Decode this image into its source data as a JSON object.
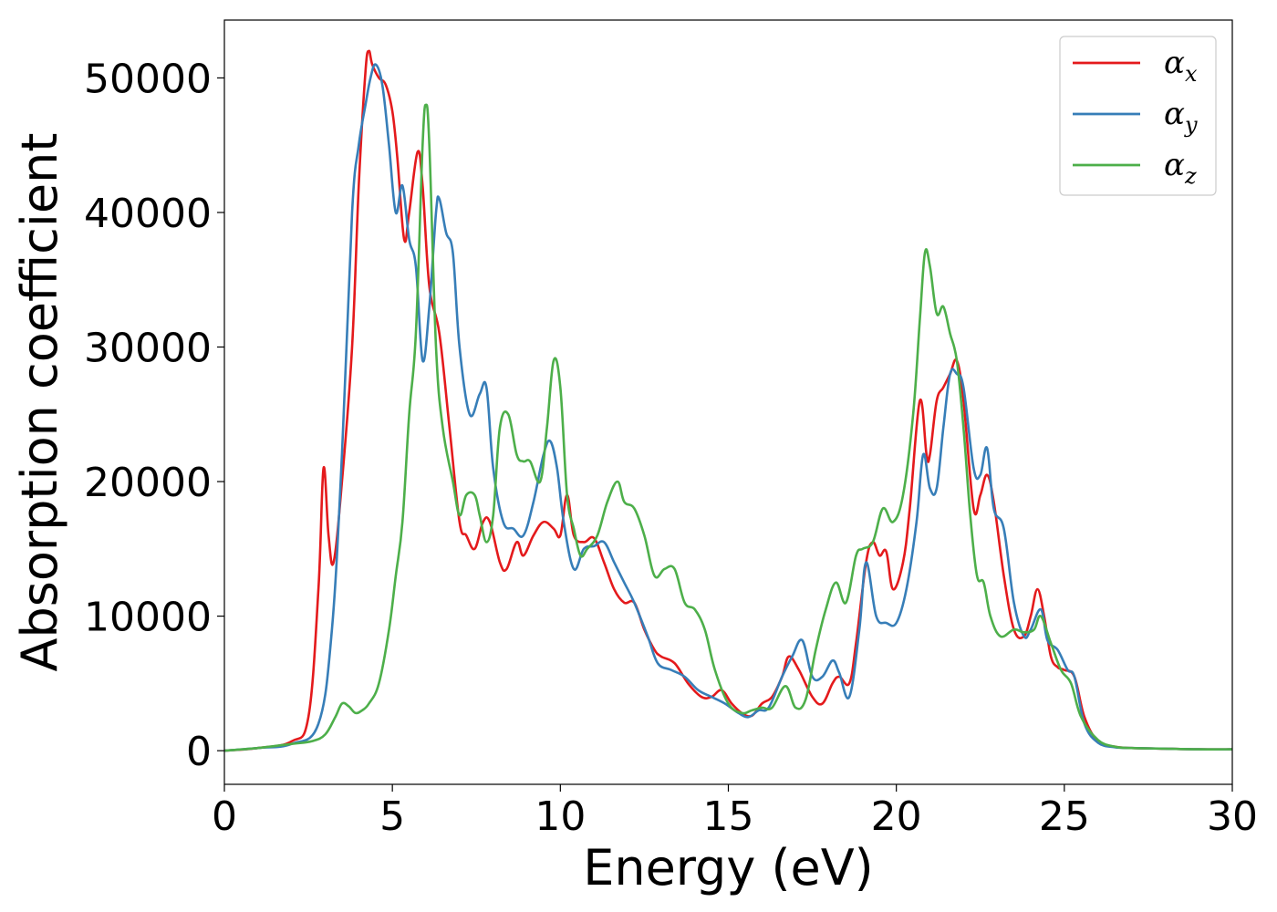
{
  "chart_data": {
    "type": "line",
    "title": "",
    "xlabel": "Energy (eV)",
    "ylabel": "Absorption coefficient",
    "xlim": [
      0,
      30
    ],
    "ylim": [
      -2500,
      54300
    ],
    "xticks": [
      0,
      5,
      10,
      15,
      20,
      25,
      30
    ],
    "yticks": [
      0,
      10000,
      20000,
      30000,
      40000,
      50000
    ],
    "grid": false,
    "legend_position": "top-right",
    "series": [
      {
        "name": "α",
        "subscript": "x",
        "color": "#e41a1c",
        "x": [
          0,
          1,
          2,
          2.5,
          2.8,
          2.95,
          3.1,
          3.25,
          3.5,
          3.8,
          4.0,
          4.2,
          4.3,
          4.4,
          4.6,
          4.8,
          5.0,
          5.15,
          5.35,
          5.5,
          5.75,
          5.9,
          6.1,
          6.4,
          6.7,
          7.0,
          7.2,
          7.45,
          7.7,
          7.9,
          8.2,
          8.4,
          8.7,
          8.9,
          9.2,
          9.5,
          9.8,
          10.0,
          10.2,
          10.4,
          10.7,
          11.0,
          11.3,
          11.6,
          11.9,
          12.2,
          12.5,
          12.8,
          13.0,
          13.4,
          13.8,
          14.2,
          14.5,
          14.8,
          15.1,
          15.4,
          15.7,
          16.0,
          16.3,
          16.6,
          16.8,
          17.1,
          17.5,
          17.8,
          18.1,
          18.3,
          18.6,
          18.8,
          19.1,
          19.3,
          19.5,
          19.7,
          19.9,
          20.2,
          20.4,
          20.7,
          20.9,
          21.0,
          21.2,
          21.4,
          21.6,
          21.8,
          22.0,
          22.3,
          22.5,
          22.7,
          22.9,
          23.2,
          23.5,
          23.8,
          24.0,
          24.2,
          24.4,
          24.6,
          24.8,
          25.0,
          25.3,
          25.6,
          26.0,
          26.5,
          27,
          28,
          29,
          30
        ],
        "y": [
          0,
          200,
          700,
          2500,
          12000,
          21000,
          16000,
          14000,
          20000,
          30000,
          42000,
          50500,
          52000,
          51000,
          50000,
          49500,
          47500,
          44000,
          38000,
          40000,
          44500,
          42000,
          34500,
          31000,
          24000,
          17000,
          16000,
          15000,
          17000,
          17000,
          14000,
          13500,
          15500,
          14500,
          16000,
          17000,
          16500,
          16000,
          19000,
          16000,
          15500,
          15800,
          14000,
          12000,
          11000,
          11000,
          9000,
          7500,
          7000,
          6500,
          5000,
          4000,
          4000,
          4500,
          3500,
          2800,
          2600,
          3500,
          4000,
          5500,
          7000,
          6000,
          4000,
          3500,
          5000,
          5500,
          5000,
          8000,
          14000,
          15500,
          14500,
          14800,
          12000,
          14000,
          18000,
          26000,
          22000,
          22000,
          26000,
          27000,
          28000,
          29000,
          26000,
          18000,
          19000,
          20500,
          18500,
          13000,
          9000,
          8500,
          10000,
          12000,
          10000,
          7000,
          6200,
          6000,
          5500,
          2500,
          700,
          300,
          200,
          150,
          100,
          100
        ]
      },
      {
        "name": "α",
        "subscript": "y",
        "color": "#377eb8",
        "x": [
          0,
          1,
          2,
          2.8,
          3.2,
          3.5,
          3.8,
          4.0,
          4.2,
          4.35,
          4.5,
          4.7,
          4.9,
          5.1,
          5.3,
          5.5,
          5.7,
          5.9,
          6.1,
          6.3,
          6.4,
          6.6,
          6.8,
          7.0,
          7.3,
          7.6,
          7.8,
          8.0,
          8.3,
          8.6,
          8.9,
          9.2,
          9.5,
          9.7,
          9.9,
          10.1,
          10.4,
          10.7,
          11.0,
          11.3,
          11.6,
          11.9,
          12.2,
          12.6,
          12.9,
          13.3,
          13.7,
          14.1,
          14.5,
          14.9,
          15.3,
          15.6,
          15.9,
          16.2,
          16.6,
          16.9,
          17.2,
          17.5,
          17.8,
          18.1,
          18.3,
          18.6,
          18.9,
          19.1,
          19.4,
          19.7,
          20.0,
          20.3,
          20.6,
          20.8,
          21.0,
          21.2,
          21.4,
          21.6,
          21.8,
          22.0,
          22.3,
          22.5,
          22.7,
          22.9,
          23.2,
          23.5,
          23.8,
          24.0,
          24.3,
          24.5,
          24.8,
          25.1,
          25.3,
          25.6,
          26.0,
          26.5,
          27,
          28,
          29,
          30
        ],
        "y": [
          0,
          200,
          500,
          2000,
          9000,
          22000,
          40000,
          45000,
          48000,
          50000,
          51000,
          49500,
          45000,
          40000,
          42000,
          38000,
          36000,
          29000,
          33000,
          40000,
          41000,
          38500,
          37000,
          30000,
          25000,
          26500,
          27000,
          21000,
          17000,
          16500,
          16000,
          18500,
          22000,
          23000,
          21000,
          17000,
          13500,
          15000,
          15200,
          15500,
          14000,
          12500,
          11000,
          8500,
          6500,
          6000,
          5500,
          4500,
          4000,
          3500,
          2800,
          2500,
          3000,
          3200,
          5500,
          7000,
          8200,
          5500,
          5500,
          6700,
          5800,
          4000,
          9000,
          14000,
          10000,
          9500,
          9500,
          12000,
          17000,
          22000,
          19500,
          19500,
          24000,
          28000,
          28000,
          27000,
          21000,
          20500,
          22500,
          18000,
          16500,
          11000,
          8500,
          9000,
          10500,
          8200,
          7500,
          6000,
          5500,
          2000,
          600,
          250,
          200,
          150,
          100,
          100
        ]
      },
      {
        "name": "α",
        "subscript": "z",
        "color": "#4daf4a",
        "x": [
          0,
          1,
          2,
          2.6,
          3.0,
          3.3,
          3.5,
          3.7,
          3.9,
          4.1,
          4.3,
          4.6,
          4.9,
          5.1,
          5.3,
          5.5,
          5.7,
          5.9,
          6.0,
          6.1,
          6.3,
          6.5,
          6.8,
          7.0,
          7.2,
          7.45,
          7.6,
          7.8,
          8.0,
          8.2,
          8.45,
          8.7,
          8.9,
          9.1,
          9.4,
          9.6,
          9.8,
          10.0,
          10.2,
          10.4,
          10.6,
          10.8,
          11.1,
          11.4,
          11.7,
          11.9,
          12.2,
          12.5,
          12.8,
          13.1,
          13.4,
          13.7,
          14.0,
          14.3,
          14.6,
          15.0,
          15.4,
          15.7,
          16.0,
          16.3,
          16.7,
          17.0,
          17.3,
          17.6,
          17.9,
          18.2,
          18.5,
          18.8,
          19.0,
          19.3,
          19.6,
          19.9,
          20.2,
          20.5,
          20.7,
          20.85,
          21.0,
          21.2,
          21.4,
          21.6,
          21.8,
          22.0,
          22.2,
          22.4,
          22.6,
          22.8,
          23.1,
          23.5,
          23.8,
          24.1,
          24.3,
          24.6,
          24.9,
          25.2,
          25.5,
          26.0,
          26.5,
          27,
          28,
          29,
          30
        ],
        "y": [
          0,
          200,
          500,
          700,
          1200,
          2500,
          3500,
          3300,
          2800,
          3000,
          3500,
          5000,
          9000,
          13000,
          17000,
          25000,
          31000,
          45000,
          48000,
          45000,
          30000,
          24000,
          20000,
          17500,
          19000,
          19000,
          17500,
          15500,
          17500,
          24000,
          25000,
          22000,
          21500,
          21500,
          20000,
          24000,
          29000,
          27000,
          19000,
          16500,
          14500,
          15000,
          16000,
          18500,
          20000,
          18500,
          18000,
          16000,
          13000,
          13500,
          13500,
          11000,
          10500,
          9000,
          6000,
          3500,
          2800,
          3000,
          3200,
          3200,
          4800,
          3200,
          3800,
          7500,
          10500,
          12500,
          11000,
          14500,
          15000,
          15500,
          18000,
          17000,
          19000,
          25000,
          32000,
          37000,
          36000,
          32500,
          33000,
          31000,
          29000,
          24000,
          17500,
          13000,
          12500,
          10000,
          8500,
          9000,
          8800,
          9000,
          10000,
          8000,
          6000,
          5000,
          2500,
          800,
          300,
          200,
          150,
          100,
          100
        ]
      }
    ]
  }
}
